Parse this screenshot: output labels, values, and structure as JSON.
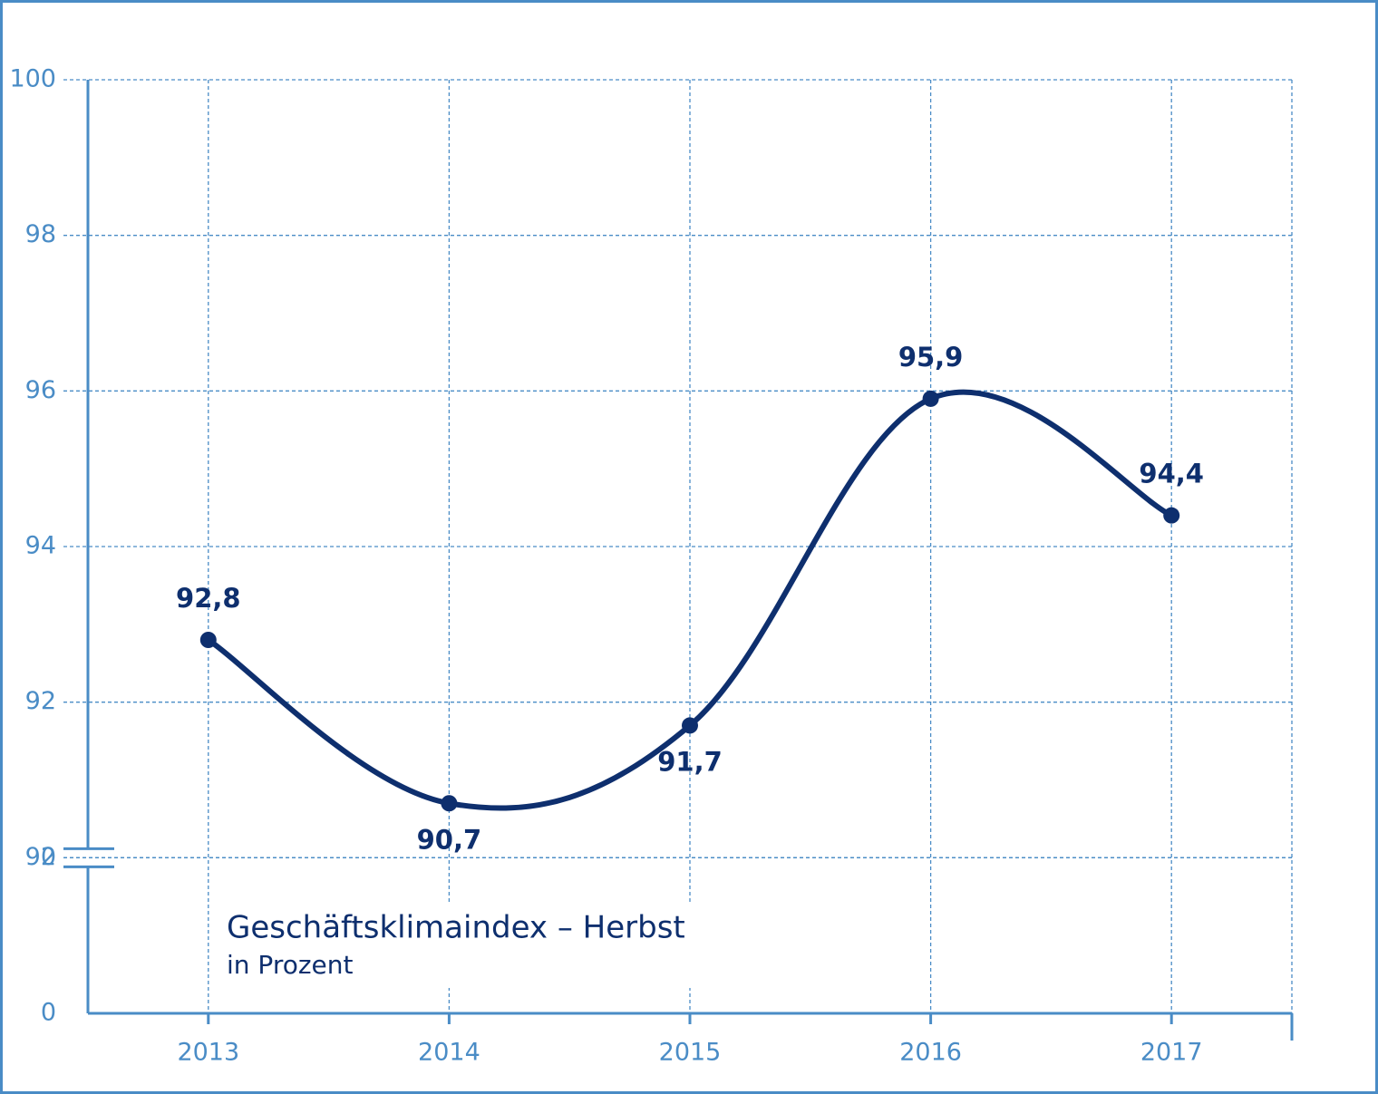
{
  "chart_data": {
    "type": "line",
    "title": "Geschäftsklimaindex – Herbst",
    "subtitle": "in Prozent",
    "categories": [
      "2013",
      "2014",
      "2015",
      "2016",
      "2017"
    ],
    "series": [
      {
        "color": "#0e2f6e",
        "values": [
          92.8,
          90.7,
          91.7,
          95.9,
          94.4
        ],
        "value_labels": [
          "92,8",
          "90,7",
          "91,7",
          "95,9",
          "94,4"
        ]
      }
    ],
    "ylim": [
      0,
      100
    ],
    "ybreak": [
      2,
      90
    ],
    "yticks": [
      0,
      2,
      90,
      92,
      94,
      96,
      98,
      100
    ],
    "grid": true
  }
}
